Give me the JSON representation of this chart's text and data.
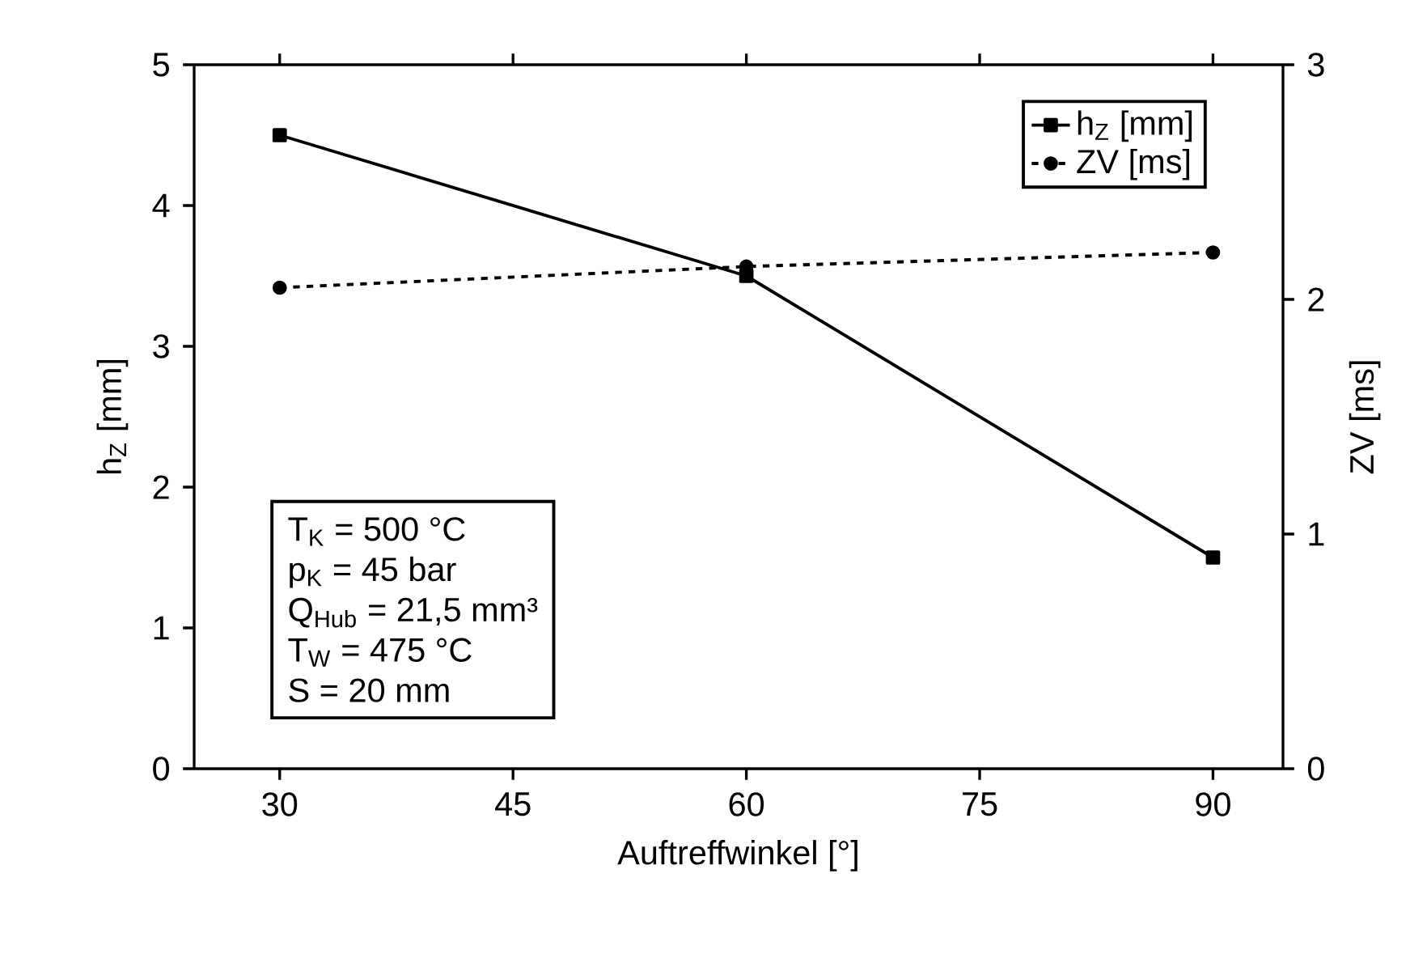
{
  "chart_data": {
    "type": "line",
    "xlabel": "Auftreffwinkel [°]",
    "ylabel": "h$_{Z}$ [mm]",
    "y2label": "ZV [ms]",
    "x": [
      30,
      60,
      90
    ],
    "xlim": [
      24.5,
      94.5
    ],
    "xticks": [
      30,
      45,
      60,
      75,
      90
    ],
    "ylim": [
      0,
      5
    ],
    "yticks": [
      0,
      1,
      2,
      3,
      4,
      5
    ],
    "y2lim": [
      0,
      3
    ],
    "y2ticks": [
      0,
      1,
      2,
      3
    ],
    "series": [
      {
        "name": "h$_{Z}$ [mm]",
        "color": "#000000",
        "values": [
          4.5,
          3.5,
          1.5
        ],
        "marker": "square",
        "line_style": "solid"
      },
      {
        "name": "ZV [ms]",
        "color": "#000000",
        "values": [
          2.05,
          2.14,
          2.2
        ],
        "axis": "y2",
        "marker": "circle",
        "line_style": "dashed"
      }
    ],
    "legend": "top right",
    "grid": false,
    "annotations": [
      "T$_{K}$ = 500 °C",
      "p$_{K}$ = 45 bar",
      "Q$_{Hub}$ = 21,5 mm³",
      "T$_{W}$ = 475 °C",
      "S = 20 mm"
    ]
  }
}
